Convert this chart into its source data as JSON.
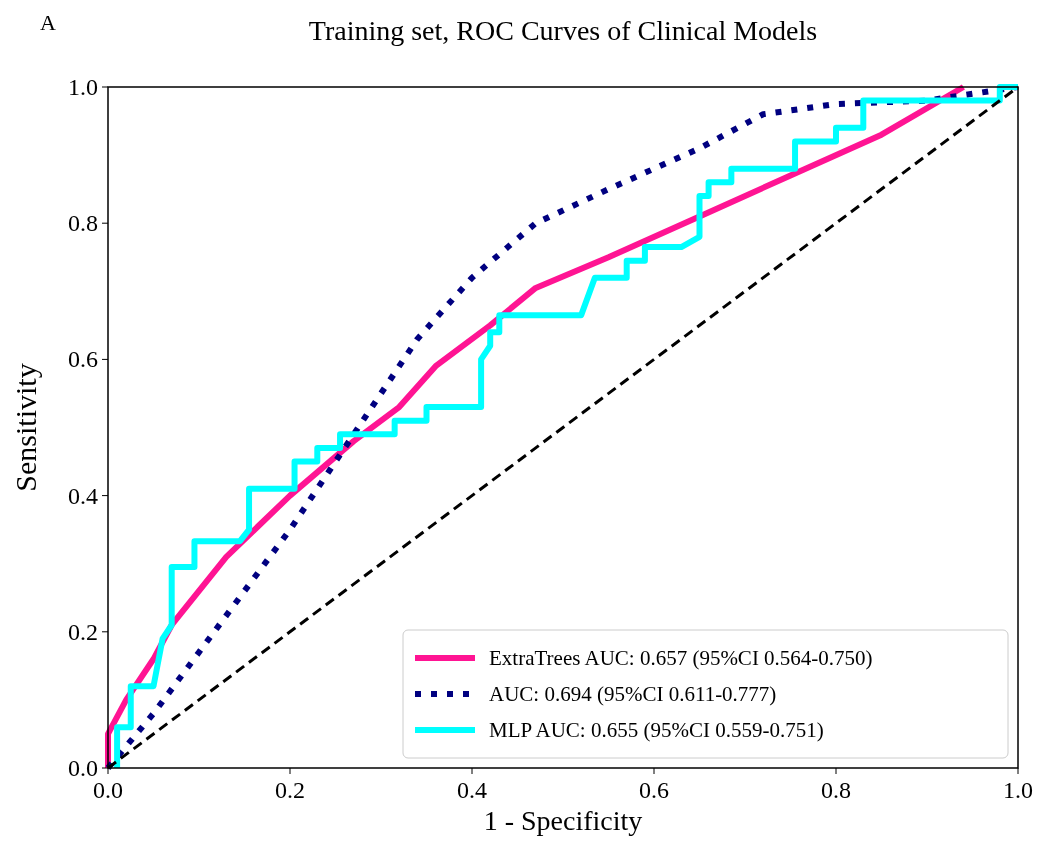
{
  "chart_data": {
    "type": "line",
    "title": "Training set, ROC Curves of Clinical Models",
    "xlabel": "1 - Specificity",
    "ylabel": "Sensitivity",
    "annotations": [
      "A"
    ],
    "xlim": [
      0,
      1
    ],
    "ylim": [
      0,
      1
    ],
    "xticks": [
      {
        "value": 0,
        "label": "0.0"
      },
      {
        "value": 0.2,
        "label": "0.2"
      },
      {
        "value": 0.4,
        "label": "0.4"
      },
      {
        "value": 0.6,
        "label": "0.6"
      },
      {
        "value": 0.8,
        "label": "0.8"
      },
      {
        "value": 1,
        "label": "1.0"
      }
    ],
    "yticks": [
      {
        "value": 0,
        "label": "0.0"
      },
      {
        "value": 0.2,
        "label": "0.2"
      },
      {
        "value": 0.4,
        "label": "0.4"
      },
      {
        "value": 0.6,
        "label": "0.6"
      },
      {
        "value": 0.8,
        "label": "0.8"
      },
      {
        "value": 1,
        "label": "1.0"
      }
    ],
    "grid": false,
    "legend": "bottom right",
    "marker": "none",
    "series": [
      {
        "name": "ExtraTrees AUC: 0.657 (95%CI 0.564-0.750)",
        "color": "#ff1493",
        "line_style": "solid",
        "x": [
          0,
          0,
          0.02,
          0.05,
          0.07,
          0.13,
          0.2,
          0.27,
          0.32,
          0.36,
          0.42,
          0.47,
          0.55,
          0.65,
          0.75,
          0.85,
          0.94
        ],
        "values": [
          0,
          0.05,
          0.1,
          0.16,
          0.21,
          0.31,
          0.4,
          0.48,
          0.53,
          0.59,
          0.65,
          0.705,
          0.75,
          0.81,
          0.87,
          0.93,
          1
        ]
      },
      {
        "name": "AUC: 0.694 (95%CI 0.611-0.777)",
        "color": "#000080",
        "line_style": "dotted",
        "x": [
          0,
          0.05,
          0.1,
          0.15,
          0.2,
          0.25,
          0.3,
          0.34,
          0.4,
          0.47,
          0.55,
          0.65,
          0.72,
          0.8,
          0.9,
          1
        ],
        "values": [
          0,
          0.08,
          0.17,
          0.26,
          0.35,
          0.45,
          0.55,
          0.63,
          0.72,
          0.8,
          0.85,
          0.91,
          0.96,
          0.975,
          0.98,
          1
        ]
      },
      {
        "name": "MLP AUC: 0.655 (95%CI 0.559-0.751)",
        "color": "#00ffff",
        "line_style": "solid",
        "x": [
          0.01,
          0.01,
          0.025,
          0.025,
          0.05,
          0.06,
          0.07,
          0.07,
          0.095,
          0.095,
          0.145,
          0.155,
          0.155,
          0.205,
          0.205,
          0.23,
          0.23,
          0.255,
          0.255,
          0.315,
          0.315,
          0.35,
          0.35,
          0.41,
          0.41,
          0.42,
          0.42,
          0.43,
          0.43,
          0.52,
          0.535,
          0.57,
          0.57,
          0.59,
          0.59,
          0.63,
          0.65,
          0.65,
          0.66,
          0.66,
          0.685,
          0.685,
          0.755,
          0.755,
          0.8,
          0.8,
          0.83,
          0.83,
          0.98,
          0.98,
          1
        ],
        "values": [
          0,
          0.06,
          0.06,
          0.12,
          0.12,
          0.19,
          0.21,
          0.295,
          0.295,
          0.333,
          0.333,
          0.35,
          0.41,
          0.41,
          0.45,
          0.45,
          0.47,
          0.47,
          0.49,
          0.49,
          0.51,
          0.51,
          0.53,
          0.53,
          0.6,
          0.62,
          0.64,
          0.64,
          0.665,
          0.665,
          0.72,
          0.72,
          0.745,
          0.745,
          0.765,
          0.765,
          0.78,
          0.84,
          0.84,
          0.86,
          0.86,
          0.88,
          0.88,
          0.92,
          0.92,
          0.94,
          0.94,
          0.98,
          0.98,
          1,
          1
        ]
      },
      {
        "color": "#000000",
        "line_style": "dashed",
        "x": [
          0,
          1
        ],
        "values": [
          0,
          1
        ]
      }
    ]
  }
}
